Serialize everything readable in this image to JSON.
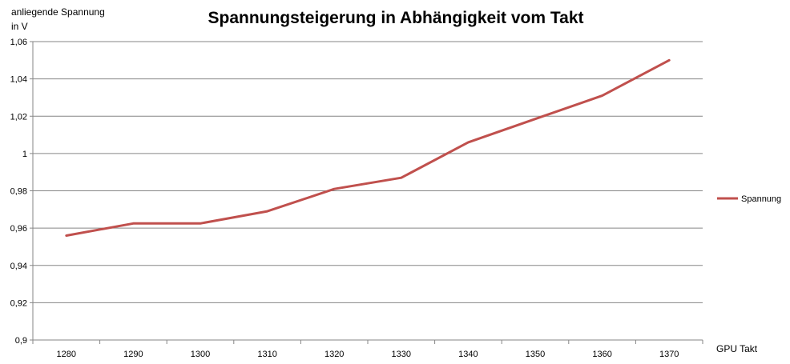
{
  "chart_data": {
    "type": "line",
    "title": "Spannungsteigerung in Abhängigkeit vom Takt",
    "ylabel_line1": "anliegende Spannung",
    "ylabel_line2": "in V",
    "xlabel": "GPU Takt",
    "categories": [
      "1280",
      "1290",
      "1300",
      "1310",
      "1320",
      "1330",
      "1340",
      "1350",
      "1360",
      "1370"
    ],
    "series": [
      {
        "name": "Spannung",
        "color": "#c0504d",
        "values": [
          0.956,
          0.9625,
          0.9625,
          0.969,
          0.981,
          0.987,
          1.006,
          1.0185,
          1.031,
          1.05
        ]
      }
    ],
    "ylim": [
      0.9,
      1.06
    ],
    "yticks": [
      "0,9",
      "0,92",
      "0,94",
      "0,96",
      "0,98",
      "1",
      "1,02",
      "1,04",
      "1,06"
    ],
    "grid": true,
    "legend_position": "right"
  }
}
